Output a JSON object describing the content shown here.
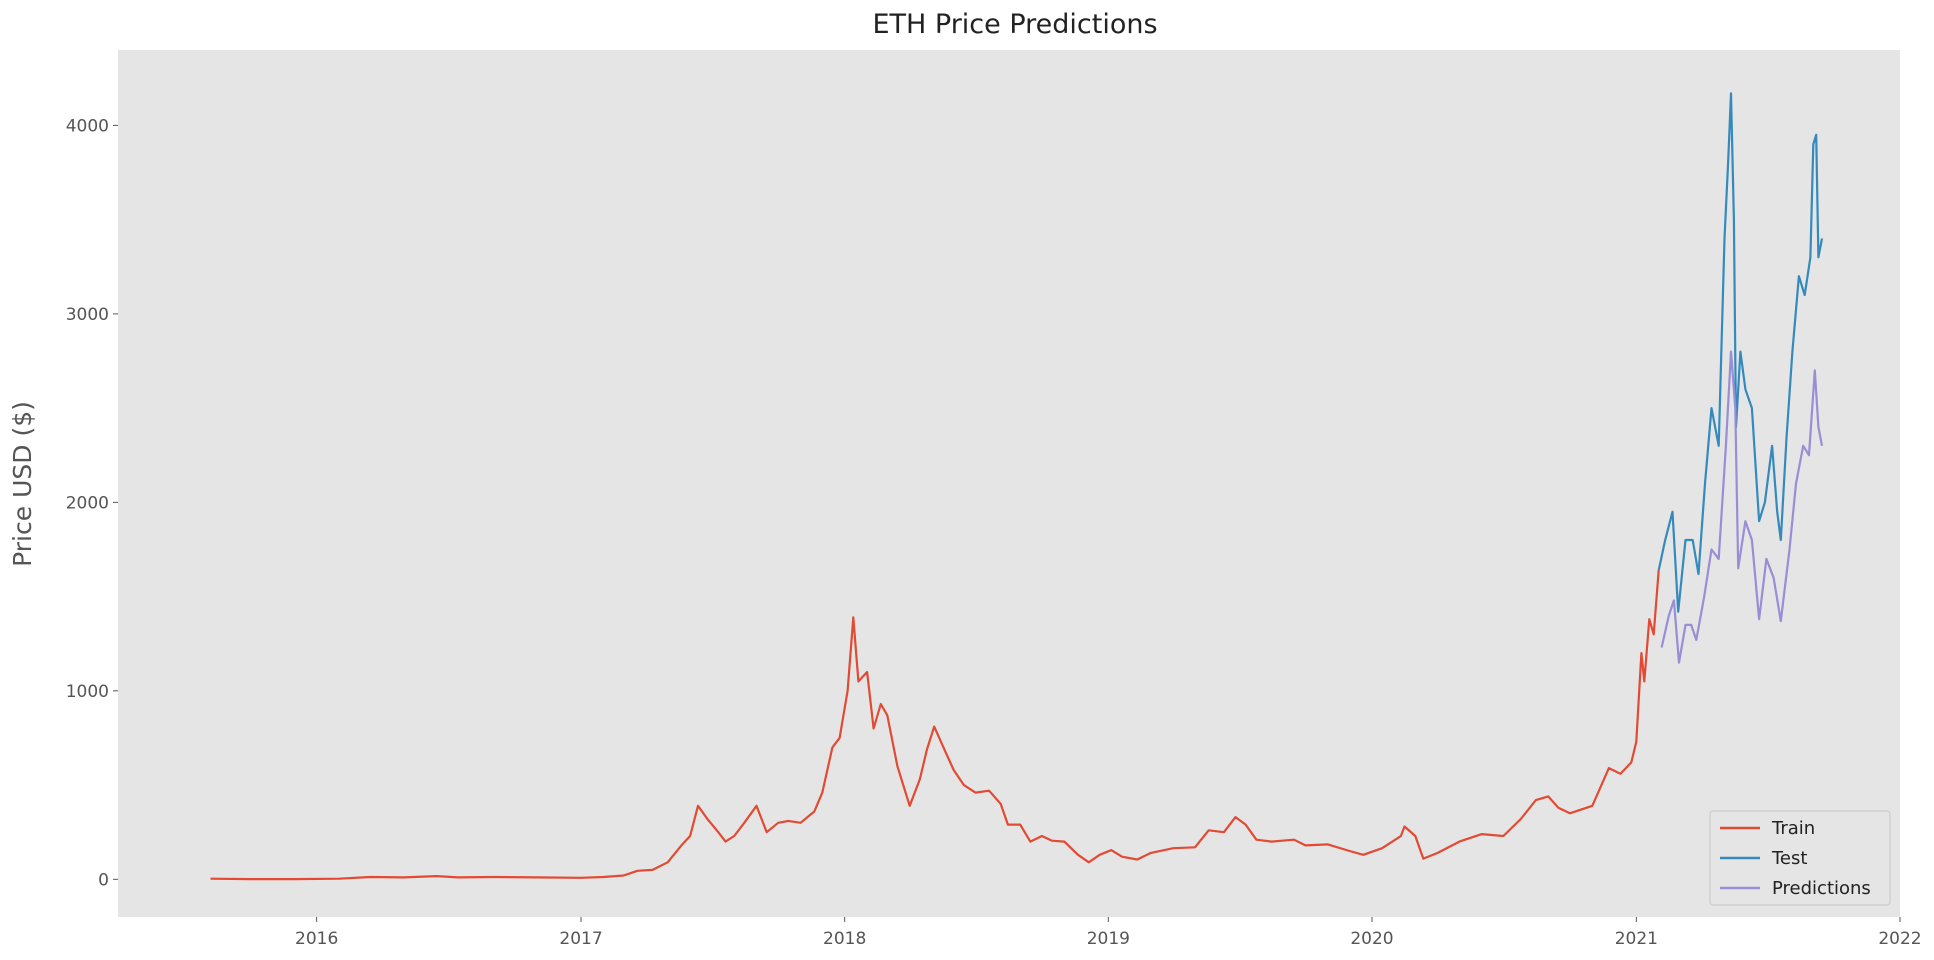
{
  "chart_data": {
    "type": "line",
    "title": "ETH Price Predictions",
    "xlabel": "",
    "ylabel": "Price USD ($)",
    "xlim": [
      "2015-04-01",
      "2022-01-01"
    ],
    "ylim": [
      -200,
      4400
    ],
    "x_ticks": [
      "2016",
      "2017",
      "2018",
      "2019",
      "2020",
      "2021",
      "2022"
    ],
    "y_ticks": [
      "0",
      "1000",
      "2000",
      "3000",
      "4000"
    ],
    "grid": false,
    "legend_position": "lower-right",
    "colors": {
      "background": "#e5e5e5",
      "train": "#e24a33",
      "test": "#348abd",
      "predictions": "#988ed5"
    },
    "series": [
      {
        "name": "Train",
        "points": [
          [
            "2015-08-07",
            3
          ],
          [
            "2015-10-01",
            1
          ],
          [
            "2015-12-01",
            1
          ],
          [
            "2016-02-01",
            3
          ],
          [
            "2016-03-15",
            12
          ],
          [
            "2016-05-01",
            10
          ],
          [
            "2016-06-15",
            17
          ],
          [
            "2016-07-15",
            10
          ],
          [
            "2016-09-01",
            12
          ],
          [
            "2016-11-01",
            10
          ],
          [
            "2017-01-01",
            8
          ],
          [
            "2017-02-01",
            12
          ],
          [
            "2017-03-01",
            20
          ],
          [
            "2017-03-20",
            45
          ],
          [
            "2017-04-10",
            50
          ],
          [
            "2017-05-01",
            90
          ],
          [
            "2017-05-20",
            180
          ],
          [
            "2017-06-01",
            230
          ],
          [
            "2017-06-12",
            390
          ],
          [
            "2017-06-25",
            320
          ],
          [
            "2017-07-10",
            250
          ],
          [
            "2017-07-20",
            200
          ],
          [
            "2017-08-01",
            230
          ],
          [
            "2017-08-15",
            300
          ],
          [
            "2017-09-01",
            390
          ],
          [
            "2017-09-15",
            250
          ],
          [
            "2017-10-01",
            300
          ],
          [
            "2017-10-15",
            310
          ],
          [
            "2017-11-01",
            300
          ],
          [
            "2017-11-20",
            360
          ],
          [
            "2017-12-01",
            460
          ],
          [
            "2017-12-15",
            700
          ],
          [
            "2017-12-25",
            750
          ],
          [
            "2018-01-05",
            1000
          ],
          [
            "2018-01-13",
            1390
          ],
          [
            "2018-01-20",
            1050
          ],
          [
            "2018-02-01",
            1100
          ],
          [
            "2018-02-10",
            800
          ],
          [
            "2018-02-20",
            930
          ],
          [
            "2018-03-01",
            870
          ],
          [
            "2018-03-15",
            600
          ],
          [
            "2018-04-01",
            390
          ],
          [
            "2018-04-15",
            530
          ],
          [
            "2018-04-25",
            690
          ],
          [
            "2018-05-05",
            810
          ],
          [
            "2018-05-20",
            680
          ],
          [
            "2018-06-01",
            580
          ],
          [
            "2018-06-15",
            500
          ],
          [
            "2018-07-01",
            460
          ],
          [
            "2018-07-20",
            470
          ],
          [
            "2018-08-05",
            400
          ],
          [
            "2018-08-15",
            290
          ],
          [
            "2018-09-01",
            290
          ],
          [
            "2018-09-15",
            200
          ],
          [
            "2018-10-01",
            230
          ],
          [
            "2018-10-15",
            205
          ],
          [
            "2018-11-01",
            200
          ],
          [
            "2018-11-20",
            130
          ],
          [
            "2018-12-05",
            90
          ],
          [
            "2018-12-20",
            130
          ],
          [
            "2019-01-05",
            155
          ],
          [
            "2019-01-20",
            120
          ],
          [
            "2019-02-10",
            105
          ],
          [
            "2019-03-01",
            140
          ],
          [
            "2019-04-01",
            165
          ],
          [
            "2019-05-01",
            170
          ],
          [
            "2019-05-20",
            260
          ],
          [
            "2019-06-10",
            250
          ],
          [
            "2019-06-26",
            330
          ],
          [
            "2019-07-10",
            290
          ],
          [
            "2019-07-25",
            210
          ],
          [
            "2019-08-15",
            200
          ],
          [
            "2019-09-15",
            210
          ],
          [
            "2019-10-01",
            180
          ],
          [
            "2019-11-01",
            185
          ],
          [
            "2019-12-01",
            150
          ],
          [
            "2019-12-20",
            130
          ],
          [
            "2020-01-15",
            165
          ],
          [
            "2020-02-10",
            230
          ],
          [
            "2020-02-15",
            280
          ],
          [
            "2020-03-01",
            230
          ],
          [
            "2020-03-12",
            110
          ],
          [
            "2020-04-01",
            140
          ],
          [
            "2020-05-01",
            200
          ],
          [
            "2020-06-01",
            240
          ],
          [
            "2020-07-01",
            230
          ],
          [
            "2020-07-25",
            320
          ],
          [
            "2020-08-15",
            420
          ],
          [
            "2020-09-01",
            440
          ],
          [
            "2020-09-15",
            380
          ],
          [
            "2020-10-01",
            350
          ],
          [
            "2020-11-01",
            390
          ],
          [
            "2020-11-24",
            590
          ],
          [
            "2020-12-10",
            560
          ],
          [
            "2020-12-25",
            620
          ],
          [
            "2021-01-01",
            730
          ],
          [
            "2021-01-08",
            1200
          ],
          [
            "2021-01-12",
            1050
          ],
          [
            "2021-01-19",
            1380
          ],
          [
            "2021-01-25",
            1300
          ],
          [
            "2021-02-01",
            1640
          ]
        ]
      },
      {
        "name": "Test",
        "points": [
          [
            "2021-02-01",
            1640
          ],
          [
            "2021-02-10",
            1800
          ],
          [
            "2021-02-20",
            1950
          ],
          [
            "2021-02-28",
            1420
          ],
          [
            "2021-03-10",
            1800
          ],
          [
            "2021-03-20",
            1800
          ],
          [
            "2021-03-28",
            1620
          ],
          [
            "2021-04-06",
            2100
          ],
          [
            "2021-04-15",
            2500
          ],
          [
            "2021-04-25",
            2300
          ],
          [
            "2021-05-03",
            3400
          ],
          [
            "2021-05-08",
            3800
          ],
          [
            "2021-05-12",
            4170
          ],
          [
            "2021-05-16",
            3500
          ],
          [
            "2021-05-19",
            2400
          ],
          [
            "2021-05-25",
            2800
          ],
          [
            "2021-06-01",
            2600
          ],
          [
            "2021-06-10",
            2500
          ],
          [
            "2021-06-20",
            1900
          ],
          [
            "2021-06-28",
            2000
          ],
          [
            "2021-07-08",
            2300
          ],
          [
            "2021-07-15",
            1950
          ],
          [
            "2021-07-20",
            1800
          ],
          [
            "2021-07-28",
            2350
          ],
          [
            "2021-08-05",
            2800
          ],
          [
            "2021-08-14",
            3200
          ],
          [
            "2021-08-22",
            3100
          ],
          [
            "2021-08-30",
            3300
          ],
          [
            "2021-09-03",
            3900
          ],
          [
            "2021-09-07",
            3950
          ],
          [
            "2021-09-10",
            3300
          ],
          [
            "2021-09-15",
            3400
          ]
        ]
      },
      {
        "name": "Predictions",
        "points": [
          [
            "2021-02-05",
            1230
          ],
          [
            "2021-02-15",
            1400
          ],
          [
            "2021-02-22",
            1480
          ],
          [
            "2021-03-01",
            1150
          ],
          [
            "2021-03-10",
            1350
          ],
          [
            "2021-03-18",
            1350
          ],
          [
            "2021-03-25",
            1270
          ],
          [
            "2021-04-05",
            1500
          ],
          [
            "2021-04-15",
            1750
          ],
          [
            "2021-04-25",
            1700
          ],
          [
            "2021-05-05",
            2300
          ],
          [
            "2021-05-12",
            2800
          ],
          [
            "2021-05-18",
            2500
          ],
          [
            "2021-05-22",
            1650
          ],
          [
            "2021-06-01",
            1900
          ],
          [
            "2021-06-10",
            1800
          ],
          [
            "2021-06-20",
            1380
          ],
          [
            "2021-06-30",
            1700
          ],
          [
            "2021-07-10",
            1600
          ],
          [
            "2021-07-20",
            1370
          ],
          [
            "2021-08-01",
            1750
          ],
          [
            "2021-08-10",
            2100
          ],
          [
            "2021-08-20",
            2300
          ],
          [
            "2021-08-28",
            2250
          ],
          [
            "2021-09-05",
            2700
          ],
          [
            "2021-09-10",
            2400
          ],
          [
            "2021-09-15",
            2300
          ]
        ]
      }
    ]
  }
}
